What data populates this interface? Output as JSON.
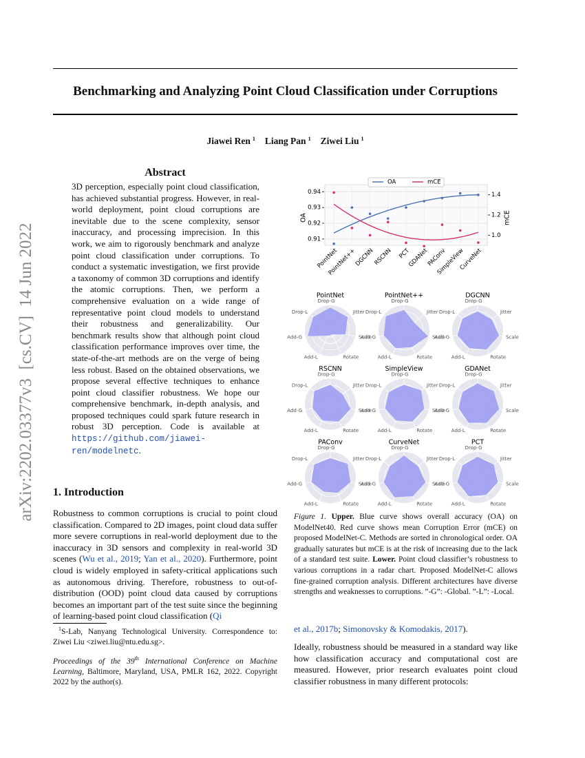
{
  "side_label": "arXiv:2202.03377v3  [cs.CV]  14 Jun 2022",
  "title": "Benchmarking and Analyzing Point Cloud Classification under Corruptions",
  "authors": [
    {
      "text": "Jiawei Ren"
    },
    {
      "sup": "1"
    },
    {
      "text": "Liang Pan"
    },
    {
      "sup": "1"
    },
    {
      "text": "Ziwei Liu"
    },
    {
      "sup": "1"
    }
  ],
  "abstract": {
    "heading": "Abstract",
    "paragraph": [
      {
        "text": "3D perception, especially point cloud classification, has achieved substantial progress. However, in real-world deployment, point cloud corruptions are inevitable due to the scene complexity, sensor inaccuracy, and processing imprecision. In this work, we aim to rigorously benchmark and analyze point cloud classification under corruptions. To conduct a systematic investigation, we first provide a taxonomy of common 3D corruptions and identify the atomic corruptions. Then, we perform a comprehensive evaluation on a wide range of representative point cloud models to understand their robustness and generalizability. Our benchmark results show that although point cloud classification performance improves over time, the state-of-the-art methods are on the verge of being less robust. Based on the obtained observations, we propose several effective techniques to enhance point cloud classifier robustness. We hope our comprehensive benchmark, in-depth analysis, and proposed techniques could spark future research in robust 3D perception. Code is available at "
      },
      {
        "code": "https://github.com/jiawei-ren/modelnetc"
      },
      {
        "text": "."
      }
    ]
  },
  "introduction": {
    "heading": "1. Introduction",
    "paragraph": [
      {
        "text": "Robustness to common corruptions is crucial to point cloud classification. Compared to 2D images, point cloud data suffer more severe corruptions in real-world deployment due to the inaccuracy in 3D sensors and complexity in real-world 3D scenes ("
      },
      {
        "cite": "Wu et al., 2019"
      },
      {
        "text": "; "
      },
      {
        "cite": "Yan et al., 2020"
      },
      {
        "text": "). Furthermore, point cloud is widely employed in safety-critical applications such as autonomous driving. Therefore, robustness to out-of-distribution (OOD) point cloud data caused by corruptions becomes an important part of the test suite since the beginning of learning-based point cloud classification ("
      },
      {
        "cite": "Qi"
      }
    ]
  },
  "footnote": [
    {
      "sup": "1"
    },
    {
      "text": "S-Lab, Nanyang Technological University. Correspondence to: Ziwei Liu <ziwei.liu@ntu.edu.sg>."
    }
  ],
  "proceedings": [
    {
      "italic": "Proceedings of the 39"
    },
    {
      "sup": "th"
    },
    {
      "italic": " International Conference on Machine Learning"
    },
    {
      "text": ", Baltimore, Maryland, USA, PMLR 162, 2022. Copyright 2022 by the author(s)."
    }
  ],
  "figure_caption": [
    {
      "italic": "Figure 1."
    },
    {
      "text": " "
    },
    {
      "bold": "Upper."
    },
    {
      "text": " Blue curve shows overall accuracy (OA) on ModelNet40. Red curve shows mean Corruption Error (mCE) on proposed ModelNet-C. Methods are sorted in chronological order. OA gradually saturates but mCE is at the risk of increasing due to the lack of a standard test suite. "
    },
    {
      "bold": "Lower."
    },
    {
      "text": " Point cloud classifier’s robustness to various corruptions in a radar chart. Proposed ModelNet-C allows fine-grained corruption analysis. Different architectures have diverse strengths and weaknesses to corruptions. ”-G”: -Global. ”-L”: -Local."
    }
  ],
  "right_column": [
    [
      {
        "cite": "et al., 2017b"
      },
      {
        "text": "; "
      },
      {
        "cite": "Simonovsky & Komodakis, 2017"
      },
      {
        "text": ")."
      }
    ],
    [
      {
        "text": "Ideally, robustness should be measured in a standard way like how classification accuracy and computational cost are measured. However, prior research evaluates point cloud classifier robustness in many different protocols:"
      }
    ]
  ],
  "chart_data": [
    {
      "type": "line",
      "categories": [
        "PointNet",
        "PointNet++",
        "DGCNN",
        "RSCNN",
        "PCT",
        "GDANet",
        "PAConv",
        "SimpleView",
        "CurveNet"
      ],
      "series": [
        {
          "name": "OA",
          "color": "#4c72b0",
          "values": [
            0.907,
            0.93,
            0.926,
            0.923,
            0.93,
            0.934,
            0.936,
            0.939,
            0.938
          ]
        },
        {
          "name": "mCE",
          "color": "#d6336c",
          "axis": "y2",
          "values": [
            1.422,
            1.072,
            1.0,
            1.13,
            0.925,
            0.892,
            1.104,
            1.047,
            0.927
          ]
        }
      ],
      "ylabel": "OA",
      "y2label": "mCE",
      "ylim": [
        0.906,
        0.9445
      ],
      "yticks": [
        0.91,
        0.92,
        0.93,
        0.94
      ],
      "y2lim": [
        0.9,
        1.5
      ],
      "y2ticks": [
        {
          "value": 1,
          "label": "1.0"
        },
        1.2,
        1.4
      ],
      "grid": true,
      "legend": "upper center"
    },
    {
      "type": "radar",
      "title": "PointNet",
      "color": "#9d9df2",
      "rlim": [
        0,
        1
      ],
      "categories": [
        "Drop-G",
        "Jitter",
        "Scale",
        "Rotate",
        "Add-L",
        "Add-G",
        "Drop-L"
      ],
      "values": [
        0.9,
        0.85,
        0.6,
        0.15,
        0.2,
        0.9,
        0.85
      ]
    },
    {
      "type": "radar",
      "title": "PointNet++",
      "color": "#9d9df2",
      "rlim": [
        0,
        1
      ],
      "categories": [
        "Drop-G",
        "Jitter",
        "Scale",
        "Rotate",
        "Add-L",
        "Add-G",
        "Drop-L"
      ],
      "values": [
        0.8,
        0.5,
        0.95,
        0.7,
        0.75,
        0.8,
        0.9
      ]
    },
    {
      "type": "radar",
      "title": "DGCNN",
      "color": "#9d9df2",
      "rlim": [
        0,
        1
      ],
      "categories": [
        "Drop-G",
        "Jitter",
        "Scale",
        "Rotate",
        "Add-L",
        "Add-G",
        "Drop-L"
      ],
      "values": [
        0.75,
        0.7,
        0.85,
        0.8,
        0.75,
        0.8,
        0.75
      ]
    },
    {
      "type": "radar",
      "title": "RSCNN",
      "color": "#9d9df2",
      "rlim": [
        0,
        1
      ],
      "categories": [
        "Drop-G",
        "Jitter",
        "Scale",
        "Rotate",
        "Add-L",
        "Add-G",
        "Drop-L"
      ],
      "values": [
        0.75,
        0.6,
        0.8,
        0.75,
        0.7,
        0.7,
        0.8
      ]
    },
    {
      "type": "radar",
      "title": "SimpleView",
      "color": "#9d9df2",
      "rlim": [
        0,
        1
      ],
      "categories": [
        "Drop-G",
        "Jitter",
        "Scale",
        "Rotate",
        "Add-L",
        "Add-G",
        "Drop-L"
      ],
      "values": [
        0.75,
        0.85,
        0.8,
        0.75,
        0.7,
        0.75,
        0.75
      ]
    },
    {
      "type": "radar",
      "title": "GDANet",
      "color": "#9d9df2",
      "rlim": [
        0,
        1
      ],
      "categories": [
        "Drop-G",
        "Jitter",
        "Scale",
        "Rotate",
        "Add-L",
        "Add-G",
        "Drop-L"
      ],
      "values": [
        0.8,
        0.8,
        0.85,
        0.8,
        0.8,
        0.75,
        0.75
      ]
    },
    {
      "type": "radar",
      "title": "PAConv",
      "color": "#9d9df2",
      "rlim": [
        0,
        1
      ],
      "categories": [
        "Drop-G",
        "Jitter",
        "Scale",
        "Rotate",
        "Add-L",
        "Add-G",
        "Drop-L"
      ],
      "values": [
        0.75,
        0.85,
        0.8,
        0.65,
        0.6,
        0.75,
        0.8
      ]
    },
    {
      "type": "radar",
      "title": "CurveNet",
      "color": "#9d9df2",
      "rlim": [
        0,
        1
      ],
      "categories": [
        "Drop-G",
        "Jitter",
        "Scale",
        "Rotate",
        "Add-L",
        "Add-G",
        "Drop-L"
      ],
      "values": [
        0.85,
        0.7,
        0.85,
        0.8,
        0.85,
        0.8,
        0.7
      ]
    },
    {
      "type": "radar",
      "title": "PCT",
      "color": "#9d9df2",
      "rlim": [
        0,
        1
      ],
      "categories": [
        "Drop-G",
        "Jitter",
        "Scale",
        "Rotate",
        "Add-L",
        "Add-G",
        "Drop-L"
      ],
      "values": [
        0.8,
        0.8,
        0.8,
        0.75,
        0.8,
        0.8,
        0.75
      ]
    }
  ]
}
